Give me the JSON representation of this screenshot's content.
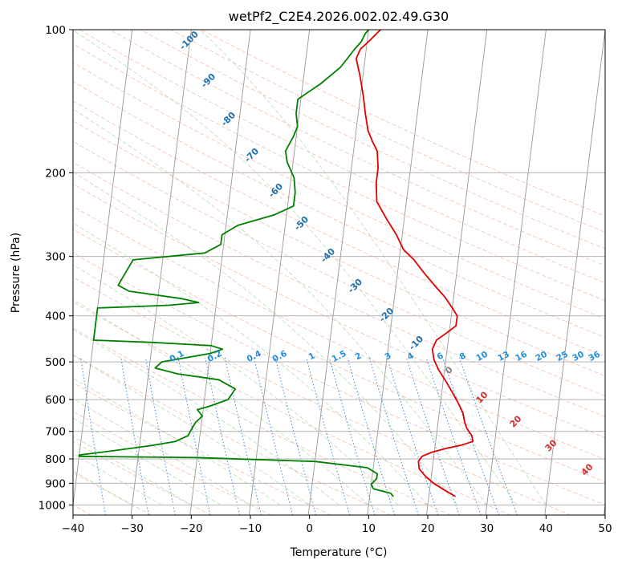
{
  "chart_data": {
    "type": "line",
    "title": "wetPf2_C2E4.2026.002.02.49.G30",
    "xlabel": "Temperature (°C)",
    "ylabel": "Pressure (hPa)",
    "xlim": [
      -40,
      50
    ],
    "ylim": [
      1050,
      100
    ],
    "y_scale": "log",
    "grid": true,
    "x_ticks": [
      "−40",
      "−30",
      "−20",
      "−10",
      "0",
      "10",
      "20",
      "30",
      "40",
      "50"
    ],
    "y_ticks": [
      "100",
      "200",
      "300",
      "400",
      "500",
      "600",
      "700",
      "800",
      "900",
      "1000"
    ],
    "series": [
      {
        "color": "#e00000",
        "points": [
          [
            24.5,
            960
          ],
          [
            22.5,
            930
          ],
          [
            20.5,
            900
          ],
          [
            19.0,
            870
          ],
          [
            17.8,
            840
          ],
          [
            17.5,
            810
          ],
          [
            18.0,
            790
          ],
          [
            19.5,
            775
          ],
          [
            22.0,
            760
          ],
          [
            24.5,
            748
          ],
          [
            26.3,
            735
          ],
          [
            26.0,
            715
          ],
          [
            25.0,
            690
          ],
          [
            24.5,
            670
          ],
          [
            24.0,
            640
          ],
          [
            23.0,
            610
          ],
          [
            21.8,
            580
          ],
          [
            20.5,
            550
          ],
          [
            19.0,
            520
          ],
          [
            18.0,
            495
          ],
          [
            17.5,
            470
          ],
          [
            18.0,
            450
          ],
          [
            19.5,
            435
          ],
          [
            21.0,
            420
          ],
          [
            21.0,
            400
          ],
          [
            20.0,
            385
          ],
          [
            18.5,
            365
          ],
          [
            16.5,
            345
          ],
          [
            14.5,
            325
          ],
          [
            12.5,
            305
          ],
          [
            10.5,
            290
          ],
          [
            9.0,
            270
          ],
          [
            7.0,
            250
          ],
          [
            5.0,
            230
          ],
          [
            4.5,
            210
          ],
          [
            4.5,
            195
          ],
          [
            4.0,
            180
          ],
          [
            3.0,
            172
          ],
          [
            2.0,
            163
          ],
          [
            1.2,
            150
          ],
          [
            0.5,
            138
          ],
          [
            -0.5,
            125
          ],
          [
            -1.5,
            115
          ],
          [
            -1.0,
            110
          ],
          [
            0.5,
            105
          ],
          [
            2.0,
            100
          ]
        ]
      },
      {
        "color": "#008000",
        "points": [
          [
            14.0,
            960
          ],
          [
            13.5,
            945
          ],
          [
            10.5,
            925
          ],
          [
            10.0,
            905
          ],
          [
            10.8,
            880
          ],
          [
            10.8,
            860
          ],
          [
            9.0,
            835
          ],
          [
            0.0,
            810
          ],
          [
            -20.0,
            795
          ],
          [
            -40.0,
            790
          ],
          [
            -40.0,
            785
          ],
          [
            -34.0,
            768
          ],
          [
            -28.0,
            750
          ],
          [
            -24.0,
            735
          ],
          [
            -22.0,
            715
          ],
          [
            -21.5,
            690
          ],
          [
            -21.0,
            670
          ],
          [
            -20.0,
            650
          ],
          [
            -21.0,
            630
          ],
          [
            -19.0,
            620
          ],
          [
            -16.0,
            600
          ],
          [
            -15.0,
            570
          ],
          [
            -18.0,
            545
          ],
          [
            -25.0,
            530
          ],
          [
            -29.0,
            515
          ],
          [
            -28.0,
            500
          ],
          [
            -20.0,
            480
          ],
          [
            -18.0,
            470
          ],
          [
            -20.0,
            462
          ],
          [
            -30.0,
            455
          ],
          [
            -40.0,
            450
          ],
          [
            -40.0,
            385
          ],
          [
            -28.0,
            380
          ],
          [
            -23.0,
            375
          ],
          [
            -26.0,
            368
          ],
          [
            -35.0,
            355
          ],
          [
            -37.0,
            345
          ],
          [
            -35.0,
            305
          ],
          [
            -23.0,
            295
          ],
          [
            -20.5,
            283
          ],
          [
            -20.5,
            270
          ],
          [
            -18.0,
            258
          ],
          [
            -12.0,
            245
          ],
          [
            -9.0,
            235
          ],
          [
            -9.0,
            220
          ],
          [
            -9.5,
            205
          ],
          [
            -11.0,
            190
          ],
          [
            -11.5,
            180
          ],
          [
            -10.5,
            168
          ],
          [
            -10.0,
            160
          ],
          [
            -10.5,
            150
          ],
          [
            -10.5,
            140
          ],
          [
            -7.0,
            130
          ],
          [
            -4.0,
            120
          ],
          [
            -3.0,
            115
          ],
          [
            -2.0,
            110
          ],
          [
            -1.0,
            106
          ],
          [
            -0.5,
            102
          ],
          [
            0.0,
            100
          ]
        ]
      }
    ],
    "dry_adiabat_labels": [
      "-100",
      "-90",
      "-80",
      "-70",
      "-60",
      "-50",
      "-40",
      "-30",
      "-20",
      "-10",
      "0",
      "10",
      "20",
      "30",
      "40"
    ],
    "mixing_ratio_labels": [
      "0.1",
      "0.2",
      "0.4",
      "0.6",
      "1",
      "1.5",
      "2",
      "3",
      "4",
      "6",
      "8",
      "10",
      "13",
      "16",
      "20",
      "25",
      "30",
      "36"
    ]
  }
}
